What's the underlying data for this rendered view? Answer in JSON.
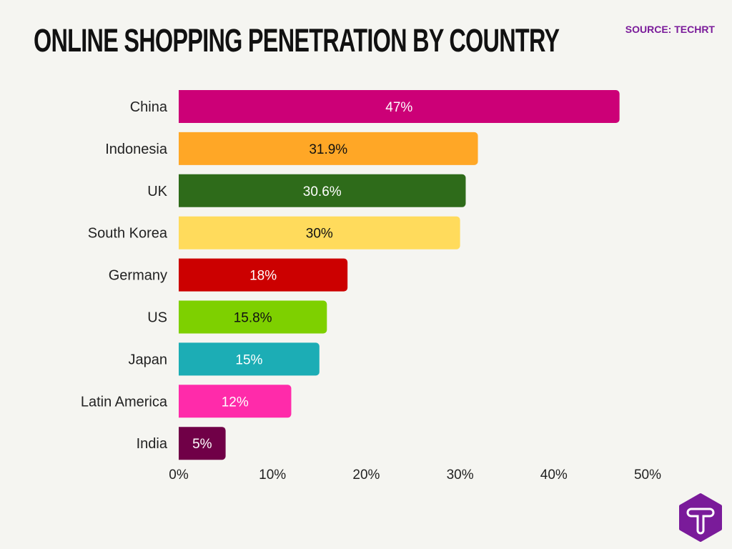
{
  "title": "ONLINE SHOPPING PENETRATION BY COUNTRY",
  "source": "SOURCE: TECHRT",
  "logo_text": "T",
  "chart_data": {
    "type": "bar",
    "orientation": "horizontal",
    "title": "ONLINE SHOPPING PENETRATION BY COUNTRY",
    "categories": [
      "China",
      "Indonesia",
      "UK",
      "South Korea",
      "Germany",
      "US",
      "Japan",
      "Latin America",
      "India"
    ],
    "values": [
      47,
      31.9,
      30.6,
      30,
      18,
      15.8,
      15,
      12,
      5
    ],
    "data_labels": [
      "47%",
      "31.9%",
      "30.6%",
      "30%",
      "18%",
      "15.8%",
      "15%",
      "12%",
      "5%"
    ],
    "colors": [
      "#cc0077",
      "#ffa726",
      "#2e6b1a",
      "#ffdb5c",
      "#cc0000",
      "#7ed000",
      "#1cadb5",
      "#ff2baa",
      "#700047"
    ],
    "label_colors": [
      "#ffffff",
      "#111111",
      "#ffffff",
      "#111111",
      "#ffffff",
      "#111111",
      "#ffffff",
      "#ffffff",
      "#ffffff"
    ],
    "xlim": [
      0,
      50
    ],
    "xticks": [
      "0%",
      "10%",
      "20%",
      "30%",
      "40%",
      "50%"
    ],
    "grid": false,
    "xlabel": "",
    "ylabel": ""
  }
}
